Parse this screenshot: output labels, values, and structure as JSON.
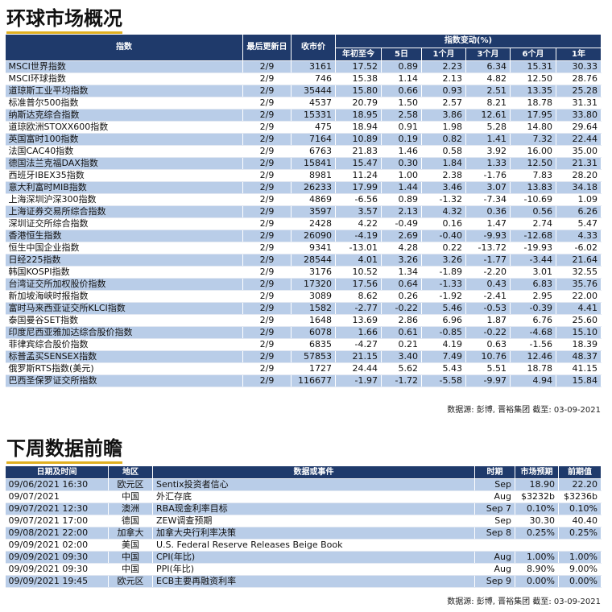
{
  "section1": {
    "title": "环球市场概况",
    "headers": {
      "index": "指数",
      "last_update": "最后更新日",
      "close": "收市价",
      "change_group": "指数变动(%)",
      "ytd": "年初至今",
      "d5": "5日",
      "m1": "1个月",
      "m3": "3个月",
      "m6": "6个月",
      "y1": "1年"
    },
    "rows": [
      [
        "MSCI世界指数",
        "2/9",
        "3161",
        "17.52",
        "0.89",
        "2.23",
        "6.34",
        "15.31",
        "30.33"
      ],
      [
        "MSCI环球指数",
        "2/9",
        "746",
        "15.38",
        "1.14",
        "2.13",
        "4.82",
        "12.50",
        "28.76"
      ],
      [
        "道琼斯工业平均指数",
        "2/9",
        "35444",
        "15.80",
        "0.66",
        "0.93",
        "2.51",
        "13.35",
        "25.28"
      ],
      [
        "标准普尔500指数",
        "2/9",
        "4537",
        "20.79",
        "1.50",
        "2.57",
        "8.21",
        "18.78",
        "31.31"
      ],
      [
        "纳斯达克综合指数",
        "2/9",
        "15331",
        "18.95",
        "2.58",
        "3.86",
        "12.61",
        "17.95",
        "33.80"
      ],
      [
        "道琼欧洲STOXX600指数",
        "2/9",
        "475",
        "18.94",
        "0.91",
        "1.98",
        "5.28",
        "14.80",
        "29.64"
      ],
      [
        "英国富时100指数",
        "2/9",
        "7164",
        "10.89",
        "0.19",
        "0.82",
        "1.41",
        "7.32",
        "22.44"
      ],
      [
        "法国CAC40指数",
        "2/9",
        "6763",
        "21.83",
        "1.46",
        "0.58",
        "3.92",
        "16.00",
        "35.00"
      ],
      [
        "德国法兰克福DAX指数",
        "2/9",
        "15841",
        "15.47",
        "0.30",
        "1.84",
        "1.33",
        "12.50",
        "21.31"
      ],
      [
        "西班牙IBEX35指数",
        "2/9",
        "8981",
        "11.24",
        "1.00",
        "2.38",
        "-1.76",
        "7.83",
        "28.20"
      ],
      [
        "意大利富时MIB指数",
        "2/9",
        "26233",
        "17.99",
        "1.44",
        "3.46",
        "3.07",
        "13.83",
        "34.18"
      ],
      [
        "上海深圳沪深300指数",
        "2/9",
        "4869",
        "-6.56",
        "0.89",
        "-1.32",
        "-7.34",
        "-10.69",
        "1.09"
      ],
      [
        "上海证券交易所综合指数",
        "2/9",
        "3597",
        "3.57",
        "2.13",
        "4.32",
        "0.36",
        "0.56",
        "6.26"
      ],
      [
        "深圳证交所综合指数",
        "2/9",
        "2428",
        "4.22",
        "-0.49",
        "0.16",
        "1.47",
        "2.74",
        "5.47"
      ],
      [
        "香港恒生指数",
        "2/9",
        "26090",
        "-4.19",
        "2.69",
        "-0.40",
        "-9.93",
        "-12.68",
        "4.33"
      ],
      [
        "恒生中国企业指数",
        "2/9",
        "9341",
        "-13.01",
        "4.28",
        "0.22",
        "-13.72",
        "-19.93",
        "-6.02"
      ],
      [
        "日经225指数",
        "2/9",
        "28544",
        "4.01",
        "3.26",
        "3.26",
        "-1.77",
        "-3.44",
        "21.64"
      ],
      [
        "韩国KOSPI指数",
        "2/9",
        "3176",
        "10.52",
        "1.34",
        "-1.89",
        "-2.20",
        "3.01",
        "32.55"
      ],
      [
        "台湾证交所加权股价指数",
        "2/9",
        "17320",
        "17.56",
        "0.64",
        "-1.33",
        "0.43",
        "6.83",
        "35.76"
      ],
      [
        "新加坡海峡时报指数",
        "2/9",
        "3089",
        "8.62",
        "0.26",
        "-1.92",
        "-2.41",
        "2.95",
        "22.00"
      ],
      [
        "富时马来西亚证交所KLCI指数",
        "2/9",
        "1582",
        "-2.77",
        "-0.22",
        "5.46",
        "-0.53",
        "-0.39",
        "4.41"
      ],
      [
        "泰国曼谷SET指数",
        "2/9",
        "1648",
        "13.69",
        "2.86",
        "6.96",
        "1.87",
        "6.76",
        "25.60"
      ],
      [
        "印度尼西亚雅加达综合股价指数",
        "2/9",
        "6078",
        "1.66",
        "0.61",
        "-0.85",
        "-0.22",
        "-4.68",
        "15.10"
      ],
      [
        "菲律宾综合股价指数",
        "2/9",
        "6835",
        "-4.27",
        "0.21",
        "4.19",
        "0.63",
        "-1.56",
        "18.39"
      ],
      [
        "标普孟买SENSEX指数",
        "2/9",
        "57853",
        "21.15",
        "3.40",
        "7.49",
        "10.76",
        "12.46",
        "48.37"
      ],
      [
        "俄罗斯RTS指数(美元)",
        "2/9",
        "1727",
        "24.44",
        "5.62",
        "5.43",
        "5.51",
        "18.78",
        "41.15"
      ],
      [
        "巴西圣保罗证交所指数",
        "2/9",
        "116677",
        "-1.97",
        "-1.72",
        "-5.58",
        "-9.97",
        "4.94",
        "15.84"
      ]
    ],
    "source": "数据源: 彭博, 晋裕集团 截至: 03-09-2021"
  },
  "section2": {
    "title": "下周数据前瞻",
    "headers": {
      "datetime": "日期及时间",
      "region": "地区",
      "event": "数据或事件",
      "period": "时期",
      "forecast": "市场预期",
      "previous": "前期值"
    },
    "rows": [
      [
        "09/06/2021 16:30",
        "欧元区",
        "Sentix投资者信心",
        "Sep",
        "18.90",
        "22.20"
      ],
      [
        "09/07/2021",
        "中国",
        "外汇存底",
        "Aug",
        "$3232b",
        "$3236b"
      ],
      [
        "09/07/2021 12:30",
        "澳洲",
        "RBA现金利率目标",
        "Sep 7",
        "0.10%",
        "0.10%"
      ],
      [
        "09/07/2021 17:00",
        "德国",
        "ZEW调查预期",
        "Sep",
        "30.30",
        "40.40"
      ],
      [
        "09/08/2021 22:00",
        "加拿大",
        "加拿大央行利率决策",
        "Sep 8",
        "0.25%",
        "0.25%"
      ],
      [
        "09/09/2021 02:00",
        "美国",
        "U.S. Federal Reserve Releases Beige Book",
        "",
        "",
        ""
      ],
      [
        "09/09/2021 09:30",
        "中国",
        "CPI(年比)",
        "Aug",
        "1.00%",
        "1.00%"
      ],
      [
        "09/09/2021 09:30",
        "中国",
        "PPI(年比)",
        "Aug",
        "8.90%",
        "9.00%"
      ],
      [
        "09/09/2021 19:45",
        "欧元区",
        "ECB主要再融资利率",
        "Sep 9",
        "0.00%",
        "0.00%"
      ]
    ],
    "source": "数据源: 彭博, 晋裕集团 截至: 03-09-2021"
  }
}
